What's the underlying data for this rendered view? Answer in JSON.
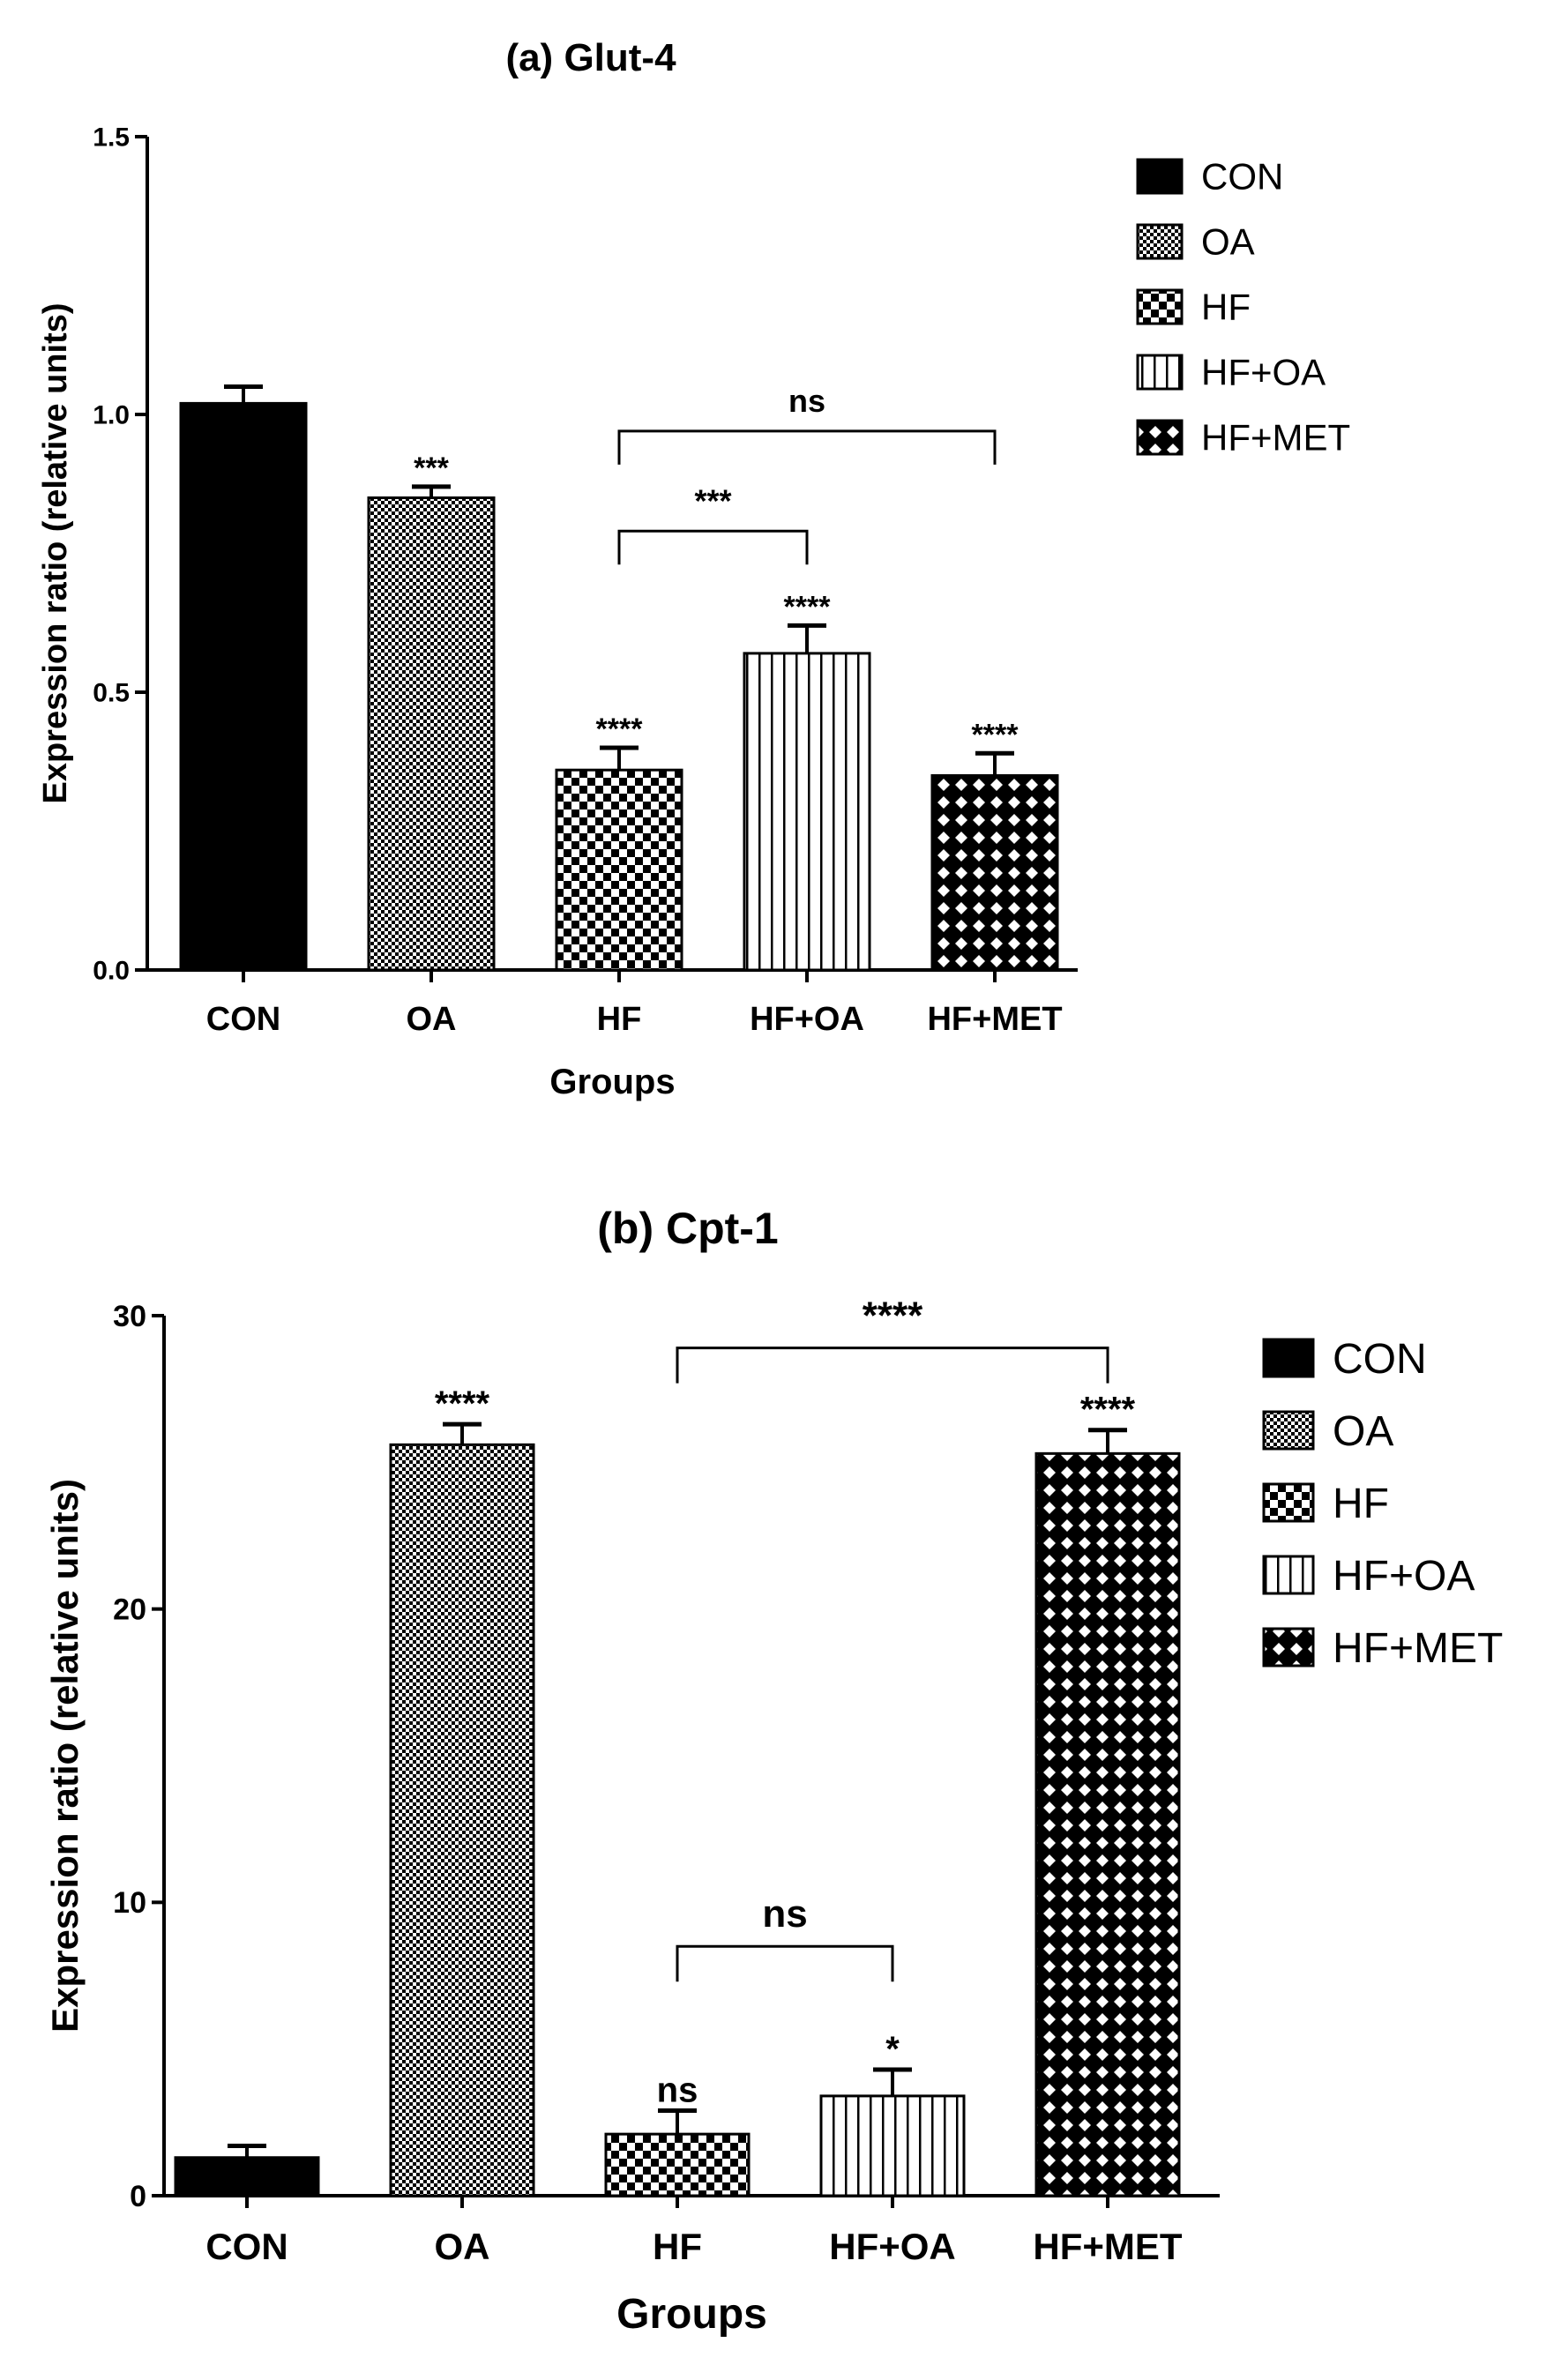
{
  "chart_data": [
    {
      "type": "bar",
      "title": "(a) Glut-4",
      "xlabel": "Groups",
      "ylabel": "Expression ratio (relative units)",
      "ylim": [
        0,
        1.5
      ],
      "yticks": [
        "0.0",
        "0.5",
        "1.0",
        "1.5"
      ],
      "categories": [
        "CON",
        "OA",
        "HF",
        "HF+OA",
        "HF+MET"
      ],
      "values": [
        1.02,
        0.85,
        0.36,
        0.57,
        0.35
      ],
      "errors": [
        0.03,
        0.02,
        0.04,
        0.05,
        0.04
      ],
      "patterns": [
        "solid",
        "fine-check",
        "check",
        "vlines",
        "diamond"
      ],
      "bar_labels": [
        "",
        "***",
        "****",
        "****",
        "****"
      ],
      "legend": [
        "CON",
        "OA",
        "HF",
        "HF+OA",
        "HF+MET"
      ],
      "legend_position": "top-right",
      "brackets": [
        {
          "from": "HF",
          "to": "HF+MET",
          "label": "ns",
          "y": 0.97
        },
        {
          "from": "HF",
          "to": "HF+OA",
          "label": "***",
          "y": 0.79
        }
      ]
    },
    {
      "type": "bar",
      "title": "(b) Cpt-1",
      "xlabel": "Groups",
      "ylabel": "Expression ratio (relative units)",
      "ylim": [
        0,
        30
      ],
      "yticks": [
        "0",
        "10",
        "20",
        "30"
      ],
      "categories": [
        "CON",
        "OA",
        "HF",
        "HF+OA",
        "HF+MET"
      ],
      "values": [
        1.3,
        25.6,
        2.1,
        3.4,
        25.3
      ],
      "errors": [
        0.4,
        0.7,
        0.8,
        0.9,
        0.8
      ],
      "patterns": [
        "solid",
        "fine-check",
        "check",
        "vlines",
        "diamond"
      ],
      "bar_labels": [
        "",
        "****",
        "ns",
        "*",
        "****"
      ],
      "legend": [
        "CON",
        "OA",
        "HF",
        "HF+OA",
        "HF+MET"
      ],
      "legend_position": "top-right",
      "brackets": [
        {
          "from": "HF",
          "to": "HF+MET",
          "label": "****",
          "y": 28.9
        },
        {
          "from": "HF",
          "to": "HF+OA",
          "label": "ns",
          "y": 8.5
        }
      ]
    }
  ]
}
